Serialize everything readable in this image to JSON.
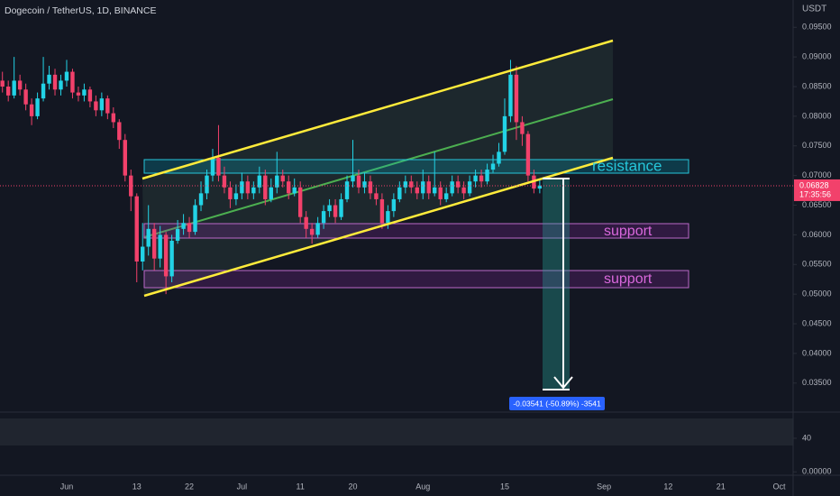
{
  "chart_data": {
    "type": "candlestick",
    "header": "Dogecoin / TetherUS, 1D, BINANCE",
    "currency": "USDT",
    "up_color": "#22d3e6",
    "down_color": "#f2416b",
    "categories": [
      null,
      null,
      null,
      null,
      null,
      null,
      null,
      null,
      null,
      null,
      null,
      "Jun",
      null,
      null,
      null,
      null,
      null,
      null,
      null,
      null,
      null,
      null,
      null,
      "13",
      null,
      null,
      null,
      null,
      null,
      null,
      null,
      null,
      "22",
      null,
      null,
      null,
      null,
      null,
      null,
      null,
      null,
      "Jul",
      null,
      null,
      null,
      null,
      null,
      null,
      null,
      null,
      null,
      "11",
      null,
      null,
      null,
      null,
      null,
      null,
      null,
      null,
      "20",
      null,
      null,
      null,
      null,
      null,
      null,
      null,
      null,
      null,
      null,
      null,
      "Aug",
      null,
      null,
      null,
      null,
      null,
      null,
      null,
      null,
      null,
      null,
      null,
      null,
      null,
      "15",
      null,
      null,
      null,
      null,
      null,
      null,
      null,
      null,
      null,
      null,
      null,
      null,
      null,
      null,
      null,
      null,
      "Sep",
      null,
      null,
      null,
      null,
      null,
      null,
      null,
      null,
      null,
      null,
      "12",
      null,
      null,
      null,
      null,
      null,
      null,
      null,
      null,
      "21",
      null,
      null,
      null,
      null,
      null,
      null,
      null,
      null,
      null,
      "Oct"
    ],
    "open": [
      0.086,
      0.085,
      0.0835,
      0.086,
      0.0845,
      0.082,
      0.08,
      0.083,
      0.0855,
      0.087,
      0.0845,
      0.086,
      0.0875,
      0.084,
      0.0835,
      0.0845,
      0.0825,
      0.081,
      0.083,
      0.0805,
      0.079,
      0.076,
      0.07,
      0.0665,
      0.0555,
      0.058,
      0.061,
      0.056,
      0.06,
      0.053,
      0.059,
      0.061,
      0.062,
      0.0605,
      0.065,
      0.067,
      0.07,
      0.073,
      0.07,
      0.068,
      0.066,
      0.067,
      0.069,
      0.067,
      0.068,
      0.07,
      0.066,
      0.068,
      0.07,
      0.069,
      0.067,
      0.068,
      0.063,
      0.061,
      0.06,
      0.062,
      0.064,
      0.065,
      0.063,
      0.066,
      0.069,
      0.07,
      0.068,
      0.069,
      0.067,
      0.066,
      0.062,
      0.064,
      0.066,
      0.068,
      0.069,
      0.068,
      0.067,
      0.069,
      0.067,
      0.068,
      0.066,
      0.067,
      0.069,
      0.068,
      0.067,
      0.069,
      0.07,
      0.069,
      0.071,
      0.072,
      0.074,
      0.08,
      0.087,
      0.079,
      0.077,
      0.07,
      0.0678,
      null,
      null,
      null,
      null,
      null,
      null,
      null,
      null,
      null,
      null,
      null,
      null,
      null,
      null,
      null,
      null,
      null,
      null,
      null,
      null,
      null,
      null,
      null,
      null,
      null,
      null,
      null,
      null,
      null,
      null,
      null,
      null,
      null,
      null,
      null,
      null,
      null,
      null,
      null,
      null,
      null
    ],
    "high": [
      0.0875,
      0.086,
      0.09,
      0.087,
      0.0855,
      0.083,
      0.084,
      0.09,
      0.0885,
      0.088,
      0.087,
      0.0895,
      0.088,
      0.085,
      0.0855,
      0.085,
      0.0835,
      0.084,
      0.0835,
      0.0815,
      0.0795,
      0.077,
      0.071,
      0.067,
      0.062,
      0.065,
      0.062,
      0.0615,
      0.0605,
      0.06,
      0.0625,
      0.0635,
      0.063,
      0.066,
      0.069,
      0.071,
      0.0745,
      0.0785,
      0.0715,
      0.069,
      0.0685,
      0.0705,
      0.07,
      0.069,
      0.0715,
      0.071,
      0.0695,
      0.074,
      0.071,
      0.07,
      0.0695,
      0.069,
      0.064,
      0.062,
      0.063,
      0.065,
      0.066,
      0.066,
      0.067,
      0.07,
      0.076,
      0.071,
      0.0705,
      0.07,
      0.068,
      0.067,
      0.065,
      0.067,
      0.069,
      0.07,
      0.07,
      0.069,
      0.071,
      0.07,
      0.074,
      0.069,
      0.068,
      0.07,
      0.07,
      0.069,
      0.07,
      0.071,
      0.071,
      0.072,
      0.0735,
      0.0755,
      0.083,
      0.0895,
      0.0885,
      0.08,
      0.0775,
      0.071,
      0.0695,
      null,
      null,
      null,
      null,
      null,
      null,
      null,
      null,
      null,
      null,
      null,
      null,
      null,
      null,
      null,
      null,
      null,
      null,
      null,
      null,
      null,
      null,
      null,
      null,
      null,
      null,
      null,
      null,
      null,
      null,
      null,
      null,
      null,
      null,
      null,
      null,
      null,
      null,
      null,
      null,
      null
    ],
    "low": [
      0.084,
      0.0825,
      0.083,
      0.0835,
      0.081,
      0.0785,
      0.0795,
      0.0825,
      0.0845,
      0.0835,
      0.0835,
      0.085,
      0.083,
      0.0825,
      0.0825,
      0.0815,
      0.08,
      0.08,
      0.0795,
      0.078,
      0.0745,
      0.069,
      0.064,
      0.052,
      0.054,
      0.0565,
      0.054,
      0.0545,
      0.05,
      0.052,
      0.0585,
      0.06,
      0.0595,
      0.06,
      0.064,
      0.066,
      0.069,
      0.069,
      0.067,
      0.0645,
      0.065,
      0.066,
      0.066,
      0.066,
      0.067,
      0.065,
      0.0655,
      0.067,
      0.068,
      0.066,
      0.0665,
      0.062,
      0.0595,
      0.0585,
      0.0595,
      0.061,
      0.063,
      0.062,
      0.0625,
      0.0655,
      0.068,
      0.067,
      0.067,
      0.066,
      0.065,
      0.061,
      0.061,
      0.063,
      0.0655,
      0.067,
      0.067,
      0.066,
      0.066,
      0.066,
      0.0665,
      0.065,
      0.0655,
      0.0665,
      0.067,
      0.066,
      0.0665,
      0.068,
      0.068,
      0.0685,
      0.0705,
      0.0715,
      0.0735,
      0.079,
      0.076,
      0.075,
      0.069,
      0.067,
      0.067,
      null,
      null,
      null,
      null,
      null,
      null,
      null,
      null,
      null,
      null,
      null,
      null,
      null,
      null,
      null,
      null,
      null,
      null,
      null,
      null,
      null,
      null,
      null,
      null,
      null,
      null,
      null,
      null,
      null,
      null,
      null,
      null,
      null,
      null,
      null,
      null,
      null,
      null,
      null,
      null,
      null
    ],
    "close": [
      0.085,
      0.0835,
      0.086,
      0.0845,
      0.082,
      0.08,
      0.083,
      0.0855,
      0.087,
      0.0845,
      0.086,
      0.0875,
      0.084,
      0.0835,
      0.0845,
      0.0825,
      0.081,
      0.083,
      0.0805,
      0.079,
      0.076,
      0.07,
      0.0665,
      0.0555,
      0.058,
      0.061,
      0.056,
      0.06,
      0.053,
      0.059,
      0.061,
      0.062,
      0.0605,
      0.065,
      0.067,
      0.07,
      0.073,
      0.07,
      0.068,
      0.066,
      0.067,
      0.069,
      0.067,
      0.068,
      0.07,
      0.066,
      0.068,
      0.07,
      0.069,
      0.067,
      0.068,
      0.063,
      0.061,
      0.06,
      0.062,
      0.064,
      0.065,
      0.063,
      0.066,
      0.069,
      0.07,
      0.068,
      0.069,
      0.067,
      0.066,
      0.062,
      0.064,
      0.066,
      0.068,
      0.069,
      0.068,
      0.067,
      0.069,
      0.067,
      0.068,
      0.066,
      0.067,
      0.069,
      0.068,
      0.067,
      0.069,
      0.07,
      0.069,
      0.071,
      0.072,
      0.074,
      0.08,
      0.087,
      0.079,
      0.077,
      0.07,
      0.0678,
      0.0683,
      null,
      null,
      null,
      null,
      null,
      null,
      null,
      null,
      null,
      null,
      null,
      null,
      null,
      null,
      null,
      null,
      null,
      null,
      null,
      null,
      null,
      null,
      null,
      null,
      null,
      null,
      null,
      null,
      null,
      null,
      null,
      null,
      null,
      null,
      null,
      null,
      null,
      null,
      null,
      null,
      null
    ],
    "ylim": [
      0.0301,
      0.0996
    ],
    "yticks": [
      {
        "value": 0.095,
        "label": "0.09500"
      },
      {
        "value": 0.09,
        "label": "0.09000"
      },
      {
        "value": 0.085,
        "label": "0.08500"
      },
      {
        "value": 0.08,
        "label": "0.08000"
      },
      {
        "value": 0.075,
        "label": "0.07500"
      },
      {
        "value": 0.07,
        "label": "0.07000"
      },
      {
        "value": 0.065,
        "label": "0.06500"
      },
      {
        "value": 0.06,
        "label": "0.06000"
      },
      {
        "value": 0.055,
        "label": "0.05500"
      },
      {
        "value": 0.05,
        "label": "0.05000"
      },
      {
        "value": 0.045,
        "label": "0.04500"
      },
      {
        "value": 0.04,
        "label": "0.04000"
      },
      {
        "value": 0.035,
        "label": "0.03500"
      }
    ],
    "last_price": 0.06828,
    "countdown": "17:35:56",
    "annotations": {
      "resistance": "resistance",
      "support_upper": "support",
      "support_lower": "support",
      "measure": "-0.03541 (-50.89%) -3541"
    },
    "lower_panel": {
      "ylim": [
        -4,
        70
      ],
      "yticks": [
        40,
        {
          "value": 0,
          "label": "0.00000"
        }
      ]
    },
    "grid": false
  }
}
